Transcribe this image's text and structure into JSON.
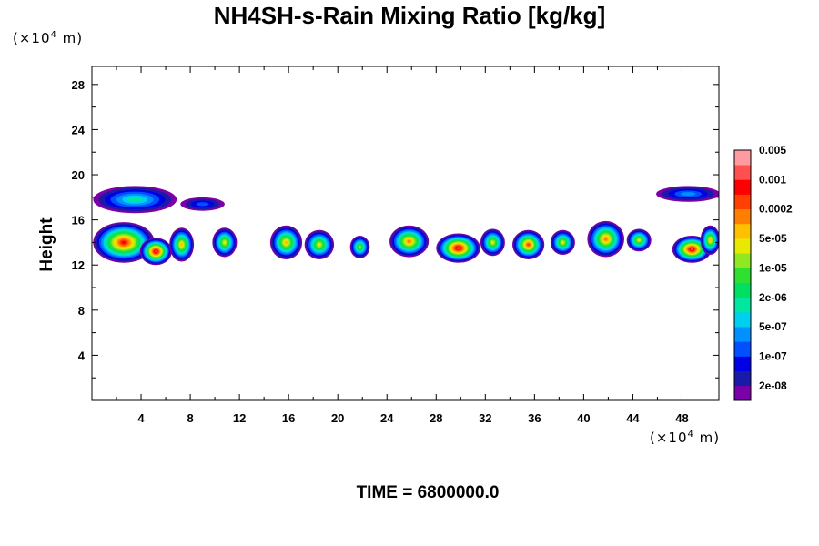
{
  "title": "NH4SH-s-Rain Mixing Ratio [kg/kg]",
  "y_units_prefix": "(×10",
  "y_units_exp": "4",
  "y_units_suffix": " m)",
  "x_units_prefix": "(×10",
  "x_units_exp": "4",
  "x_units_suffix": " m)",
  "time_label": "TIME = 6800000.0",
  "chart_data": {
    "type": "heatmap",
    "title": "NH4SH-s-Rain Mixing Ratio [kg/kg]",
    "xlabel": "",
    "ylabel": "Height",
    "xlim": [
      0,
      51
    ],
    "ylim": [
      0,
      29.6
    ],
    "x_ticks": [
      "4",
      "8",
      "12",
      "16",
      "20",
      "24",
      "28",
      "32",
      "36",
      "40",
      "44",
      "48"
    ],
    "x_tick_values": [
      4,
      8,
      12,
      16,
      20,
      24,
      28,
      32,
      36,
      40,
      44,
      48
    ],
    "y_ticks": [
      "4",
      "8",
      "12",
      "16",
      "20",
      "24",
      "28"
    ],
    "y_tick_values": [
      4,
      8,
      12,
      16,
      20,
      24,
      28
    ],
    "colorbar": {
      "colors": [
        "#7a00a8",
        "#1a1aa8",
        "#0000e6",
        "#0050ff",
        "#0090ff",
        "#00d0f0",
        "#00e8a0",
        "#00e060",
        "#30e030",
        "#90e820",
        "#e8e800",
        "#ffc000",
        "#ff8000",
        "#ff4000",
        "#ff0000",
        "#ff5050",
        "#ff9aa0"
      ],
      "labels": [
        "2e-08",
        "1e-07",
        "5e-07",
        "2e-06",
        "1e-05",
        "5e-05",
        "0.0002",
        "0.001",
        "0.005"
      ]
    },
    "features": [
      {
        "x": 2.6,
        "y": 14.0,
        "rx": 2.5,
        "ry": 1.8,
        "peak": 14
      },
      {
        "x": 5.2,
        "y": 13.2,
        "rx": 1.3,
        "ry": 1.2,
        "peak": 15
      },
      {
        "x": 7.3,
        "y": 13.8,
        "rx": 1.0,
        "ry": 1.5,
        "peak": 11
      },
      {
        "x": 10.8,
        "y": 14.0,
        "rx": 1.0,
        "ry": 1.3,
        "peak": 10
      },
      {
        "x": 15.8,
        "y": 14.0,
        "rx": 1.3,
        "ry": 1.5,
        "peak": 11
      },
      {
        "x": 18.5,
        "y": 13.8,
        "rx": 1.2,
        "ry": 1.3,
        "peak": 10
      },
      {
        "x": 21.8,
        "y": 13.6,
        "rx": 0.8,
        "ry": 1.0,
        "peak": 9
      },
      {
        "x": 25.8,
        "y": 14.1,
        "rx": 1.6,
        "ry": 1.4,
        "peak": 12
      },
      {
        "x": 29.8,
        "y": 13.5,
        "rx": 1.8,
        "ry": 1.3,
        "peak": 15
      },
      {
        "x": 32.6,
        "y": 14.0,
        "rx": 1.0,
        "ry": 1.2,
        "peak": 10
      },
      {
        "x": 35.5,
        "y": 13.8,
        "rx": 1.3,
        "ry": 1.3,
        "peak": 13
      },
      {
        "x": 38.3,
        "y": 14.0,
        "rx": 1.0,
        "ry": 1.1,
        "peak": 10
      },
      {
        "x": 41.8,
        "y": 14.3,
        "rx": 1.5,
        "ry": 1.6,
        "peak": 12
      },
      {
        "x": 44.5,
        "y": 14.2,
        "rx": 1.0,
        "ry": 1.0,
        "peak": 10
      },
      {
        "x": 48.8,
        "y": 13.4,
        "rx": 1.6,
        "ry": 1.2,
        "peak": 15
      },
      {
        "x": 50.3,
        "y": 14.2,
        "rx": 0.8,
        "ry": 1.3,
        "peak": 11
      },
      {
        "x": 3.5,
        "y": 17.8,
        "rx": 3.4,
        "ry": 1.2,
        "peak": 6
      },
      {
        "x": 9.0,
        "y": 17.4,
        "rx": 1.8,
        "ry": 0.6,
        "peak": 3
      },
      {
        "x": 48.5,
        "y": 18.3,
        "rx": 2.6,
        "ry": 0.7,
        "peak": 4
      }
    ]
  }
}
